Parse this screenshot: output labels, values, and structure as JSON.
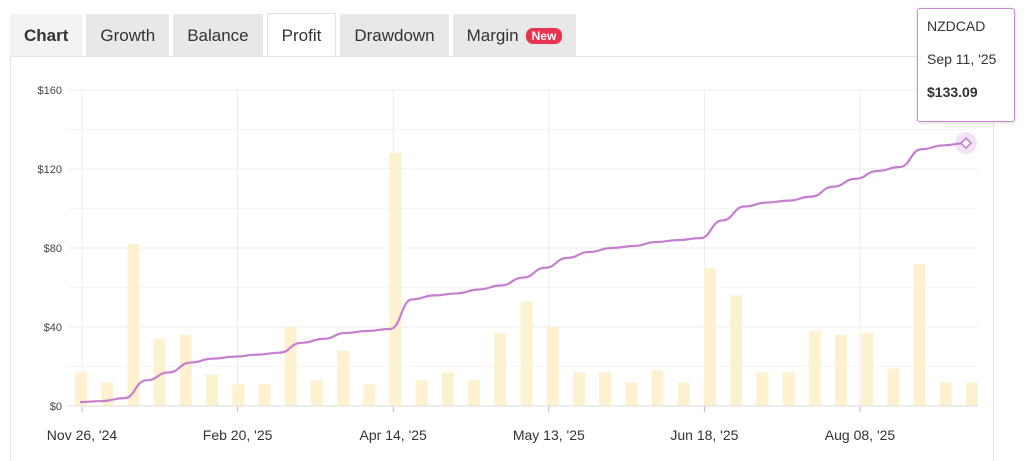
{
  "tabs": [
    {
      "label": "Chart"
    },
    {
      "label": "Growth"
    },
    {
      "label": "Balance"
    },
    {
      "label": "Profit"
    },
    {
      "label": "Drawdown"
    },
    {
      "label": "Margin",
      "badge": "New"
    }
  ],
  "tooltip": {
    "symbol": "NZDCAD",
    "date": "Sep 11, '25",
    "value": "$133.09"
  },
  "colors": {
    "line": "#c67ed0",
    "bar": "#fdf1d0",
    "grid": "#ececec",
    "badge": "#e8344e"
  },
  "chart_data": {
    "type": "line",
    "title": "",
    "xlabel": "",
    "ylabel": "",
    "ylim": [
      0,
      160
    ],
    "yticks": [
      "$0",
      "$40",
      "$80",
      "$120",
      "$160"
    ],
    "xticks": [
      "Nov 26, '24",
      "Feb 20, '25",
      "Apr 14, '25",
      "May 13, '25",
      "Jun 18, '25",
      "Aug 08, '25"
    ],
    "grid": true,
    "series": [
      {
        "kind": "line",
        "points": [
          [
            0,
            2
          ],
          [
            1,
            2.5
          ],
          [
            2,
            4
          ],
          [
            3,
            13
          ],
          [
            4,
            17
          ],
          [
            5,
            22
          ],
          [
            6,
            24
          ],
          [
            7,
            25
          ],
          [
            8,
            26
          ],
          [
            9,
            27
          ],
          [
            10,
            32
          ],
          [
            11,
            34
          ],
          [
            12,
            37
          ],
          [
            13,
            38
          ],
          [
            14,
            39
          ],
          [
            15,
            54
          ],
          [
            16,
            56
          ],
          [
            17,
            57
          ],
          [
            18,
            59
          ],
          [
            19,
            61
          ],
          [
            20,
            65
          ],
          [
            21,
            70
          ],
          [
            22,
            75
          ],
          [
            23,
            78
          ],
          [
            24,
            80
          ],
          [
            25,
            81
          ],
          [
            26,
            83
          ],
          [
            27,
            84
          ],
          [
            28,
            85
          ],
          [
            29,
            94
          ],
          [
            30,
            101
          ],
          [
            31,
            103
          ],
          [
            32,
            104
          ],
          [
            33,
            106
          ],
          [
            34,
            111
          ],
          [
            35,
            115
          ],
          [
            36,
            119
          ],
          [
            37,
            121
          ],
          [
            38,
            130
          ],
          [
            39,
            132
          ],
          [
            40,
            133.09
          ]
        ]
      },
      {
        "kind": "bar",
        "points": [
          [
            0,
            17
          ],
          [
            1,
            12
          ],
          [
            2,
            82
          ],
          [
            3,
            34
          ],
          [
            4,
            36
          ],
          [
            5,
            16
          ],
          [
            6,
            11
          ],
          [
            7,
            11
          ],
          [
            8,
            40
          ],
          [
            9,
            13
          ],
          [
            10,
            28
          ],
          [
            11,
            11
          ],
          [
            12,
            128
          ],
          [
            13,
            13
          ],
          [
            14,
            17
          ],
          [
            15,
            13
          ],
          [
            16,
            37
          ],
          [
            17,
            53
          ],
          [
            18,
            40
          ],
          [
            19,
            17
          ],
          [
            20,
            17
          ],
          [
            21,
            12
          ],
          [
            22,
            18
          ],
          [
            23,
            12
          ],
          [
            24,
            70
          ],
          [
            25,
            56
          ],
          [
            26,
            17
          ],
          [
            27,
            17
          ],
          [
            28,
            38
          ],
          [
            29,
            36
          ],
          [
            30,
            37
          ],
          [
            31,
            19
          ],
          [
            32,
            72
          ],
          [
            33,
            12
          ],
          [
            34,
            12
          ]
        ]
      }
    ]
  }
}
